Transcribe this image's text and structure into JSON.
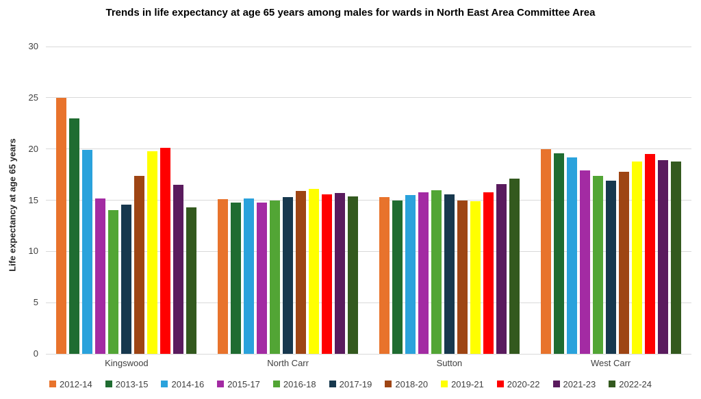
{
  "chart_data": {
    "type": "bar",
    "title": "Trends in life expectancy at  age 65 years among males for wards in North East Area Committee Area",
    "xlabel": "",
    "ylabel": "Life expectancy at  age 65 years",
    "ylim": [
      0,
      30
    ],
    "yticks": [
      0,
      5,
      10,
      15,
      20,
      25,
      30
    ],
    "grid": true,
    "legend_position": "bottom",
    "gridline_color": "#d9d9d9",
    "axis_text_color": "#404040",
    "title_color": "#000000",
    "background_color": "#ffffff",
    "categories": [
      "Kingswood",
      "North Carr",
      "Sutton",
      "West Carr"
    ],
    "series": [
      {
        "name": "2012-14",
        "color": "#E8732C",
        "values": [
          25.0,
          15.1,
          15.3,
          20.0
        ]
      },
      {
        "name": "2013-15",
        "color": "#1F6C31",
        "values": [
          23.0,
          14.8,
          15.0,
          19.6
        ]
      },
      {
        "name": "2014-16",
        "color": "#2AA2DC",
        "values": [
          19.9,
          15.2,
          15.5,
          19.2
        ]
      },
      {
        "name": "2015-17",
        "color": "#A32BA3",
        "values": [
          15.2,
          14.8,
          15.8,
          17.9
        ]
      },
      {
        "name": "2016-18",
        "color": "#52A535",
        "values": [
          14.0,
          15.0,
          16.0,
          17.4
        ]
      },
      {
        "name": "2017-19",
        "color": "#17384E",
        "values": [
          14.6,
          15.3,
          15.6,
          16.9
        ]
      },
      {
        "name": "2018-20",
        "color": "#9E4514",
        "values": [
          17.4,
          15.9,
          15.0,
          17.8
        ]
      },
      {
        "name": "2019-21",
        "color": "#FFFF00",
        "values": [
          19.8,
          16.1,
          14.9,
          18.8
        ]
      },
      {
        "name": "2020-22",
        "color": "#FF0000",
        "values": [
          20.1,
          15.6,
          15.8,
          19.5
        ]
      },
      {
        "name": "2021-23",
        "color": "#5A1B5E",
        "values": [
          16.5,
          15.7,
          16.6,
          18.9
        ]
      },
      {
        "name": "2022-24",
        "color": "#33591E",
        "values": [
          14.3,
          15.4,
          17.1,
          18.8
        ]
      }
    ]
  }
}
